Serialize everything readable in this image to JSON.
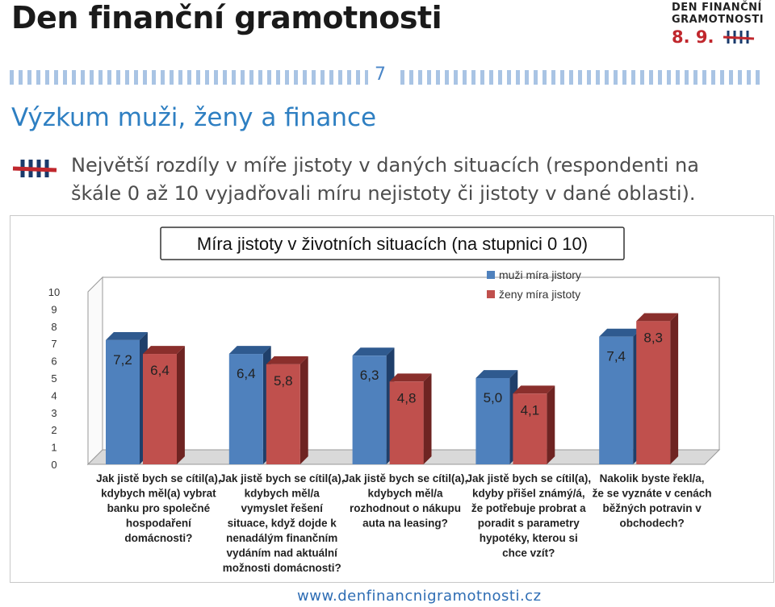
{
  "header": {
    "title": "Den finanční gramotnosti",
    "logo": {
      "line1": "DEN FINANČNÍ",
      "line2": "GRAMOTNOSTI",
      "date": "8. 9."
    },
    "page_number": "7"
  },
  "slide": {
    "subtitle": "Výzkum muži, ženy a finance",
    "text": "Největší rozdíly v míře jistoty v daných situacích (respondenti na škále 0 až 10 vyjadřovali míru nejistoty či jistoty v dané oblasti)."
  },
  "colors": {
    "men": "#4f81bd",
    "women": "#c0504d",
    "accent": "#2e7fc2",
    "brand_red": "#c0272d"
  },
  "chart_data": {
    "type": "bar",
    "title": "Míra jistoty v životních situacích (na stupnici 0 10)",
    "categories": [
      "Jak jistě bych se cítil(a), kdybych měl(a) vybrat banku pro společné hospodaření domácnosti?",
      "Jak jistě bych se cítil(a), kdybych měl/a vymyslet řešení situace, když dojde k nenadálým finančním vydáním nad aktuální možnosti domácnosti?",
      "Jak jistě bych se cítil(a), kdybych měl/a rozhodnout o nákupu auta na leasing?",
      "Jak jistě bych se cítil(a), kdyby přišel známý/á, že potřebuje probrat a poradit s parametry hypotéky, kterou si chce vzít?",
      "Nakolik byste řekl/a, že se vyznáte v cenách běžných potravin v obchodech?"
    ],
    "category_lines": [
      [
        "Jak jistě bych se cítil(a),",
        "kdybych měl(a) vybrat",
        "banku pro společné",
        "hospodaření",
        "domácnosti?"
      ],
      [
        "Jak jistě bych se cítil(a),",
        "kdybych měl/a",
        "vymyslet řešení",
        "situace, když dojde k",
        "nenadálým finančním",
        "vydáním nad aktuální",
        "možnosti domácnosti?"
      ],
      [
        "Jak jistě bych se cítil(a),",
        "kdybych měl/a",
        "rozhodnout o nákupu",
        "auta na leasing?"
      ],
      [
        "Jak jistě bych se cítil(a),",
        "kdyby přišel známý/á,",
        "že potřebuje probrat a",
        "poradit s parametry",
        "hypotéky, kterou si",
        "chce vzít?"
      ],
      [
        "Nakolik byste řekl/a,",
        "že se vyznáte v cenách",
        "běžných potravin v",
        "obchodech?"
      ]
    ],
    "series": [
      {
        "name": "muži míra jistory",
        "values": [
          7.2,
          6.4,
          6.3,
          5.0,
          7.4
        ],
        "labels": [
          "7,2",
          "6,4",
          "6,3",
          "5,0",
          "7,4"
        ]
      },
      {
        "name": "ženy míra jistoty",
        "values": [
          6.4,
          5.8,
          4.8,
          4.1,
          8.3
        ],
        "labels": [
          "6,4",
          "5,8",
          "4,8",
          "4,1",
          "8,3"
        ]
      }
    ],
    "y_ticks": [
      "0",
      "1",
      "2",
      "3",
      "4",
      "5",
      "6",
      "7",
      "8",
      "9",
      "10"
    ],
    "ylim": [
      0,
      10
    ],
    "legend_position": "top-right"
  },
  "footer": {
    "url": "www.denfinancnigramotnosti.cz"
  }
}
